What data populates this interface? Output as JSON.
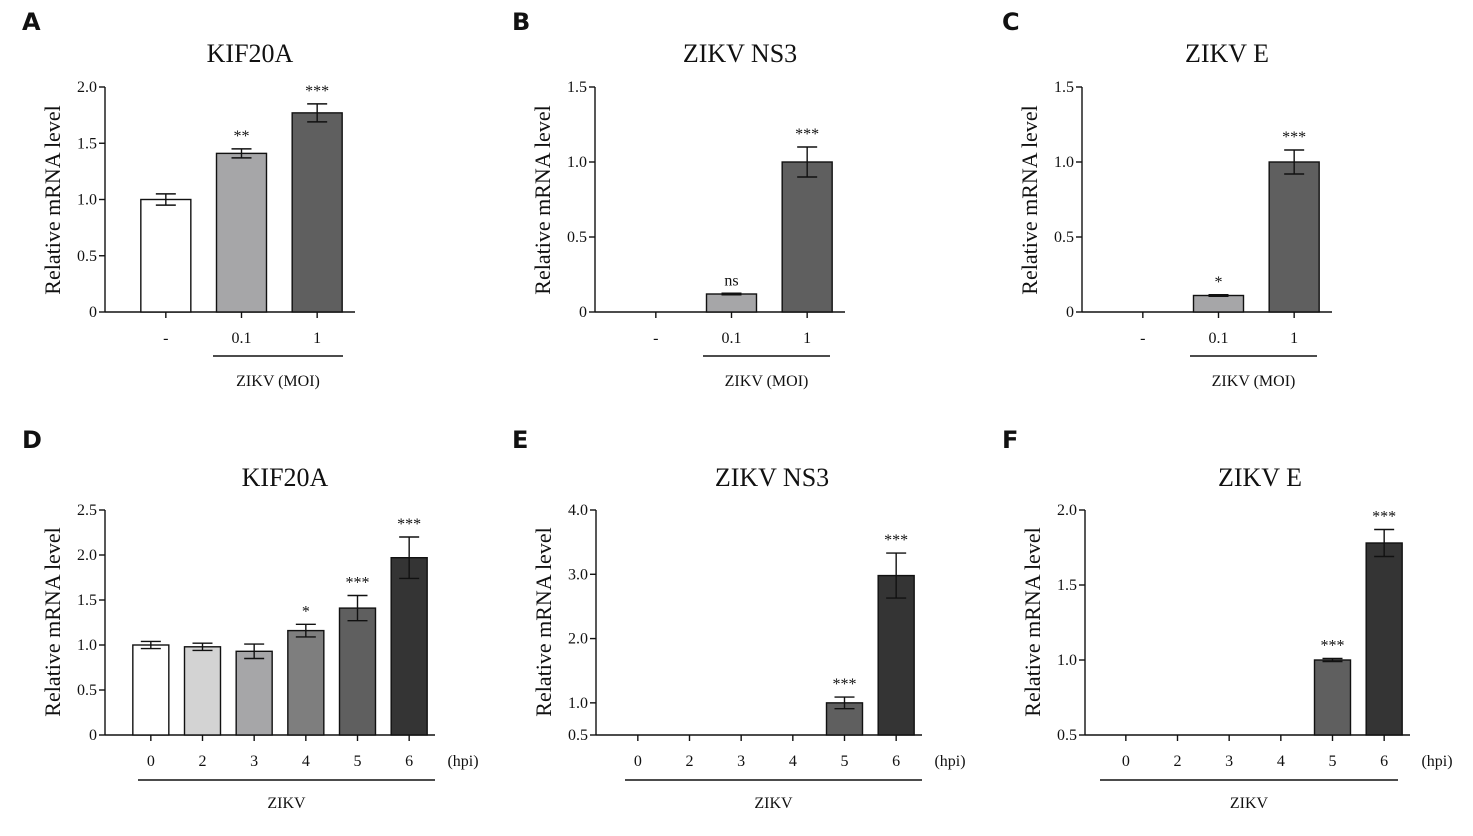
{
  "chart_data": [
    {
      "panel": "A",
      "type": "bar",
      "title": "KIF20A",
      "ylabel": "Relative mRNA level",
      "ylim": [
        0,
        2.0
      ],
      "yticks": [
        "0",
        "0.5",
        "1.0",
        "1.5",
        "2.0"
      ],
      "categories": [
        "-",
        "0.1",
        "1"
      ],
      "group_label": "ZIKV (MOI)",
      "unit_label": "",
      "values": [
        1.0,
        1.41,
        1.77
      ],
      "errors": [
        0.05,
        0.04,
        0.08
      ],
      "significance": [
        "",
        "**",
        "***"
      ],
      "colors": [
        "#ffffff",
        "#a6a6a8",
        "#5f5f5f"
      ]
    },
    {
      "panel": "B",
      "type": "bar",
      "title": "ZIKV NS3",
      "ylabel": "Relative mRNA level",
      "ylim": [
        0,
        1.5
      ],
      "yticks": [
        "0",
        "0.5",
        "1.0",
        "1.5"
      ],
      "categories": [
        "-",
        "0.1",
        "1"
      ],
      "group_label": "ZIKV (MOI)",
      "unit_label": "",
      "values": [
        0.0,
        0.12,
        1.0
      ],
      "errors": [
        0.0,
        0.005,
        0.1
      ],
      "significance": [
        "",
        "ns",
        "***"
      ],
      "colors": [
        "#ffffff",
        "#a6a6a8",
        "#5f5f5f"
      ]
    },
    {
      "panel": "C",
      "type": "bar",
      "title": "ZIKV E",
      "ylabel": "Relative mRNA level",
      "ylim": [
        0,
        1.5
      ],
      "yticks": [
        "0",
        "0.5",
        "1.0",
        "1.5"
      ],
      "categories": [
        "-",
        "0.1",
        "1"
      ],
      "group_label": "ZIKV (MOI)",
      "unit_label": "",
      "values": [
        0.0,
        0.11,
        1.0
      ],
      "errors": [
        0.0,
        0.005,
        0.08
      ],
      "significance": [
        "",
        "*",
        "***"
      ],
      "colors": [
        "#ffffff",
        "#a6a6a8",
        "#5f5f5f"
      ]
    },
    {
      "panel": "D",
      "type": "bar",
      "title": "KIF20A",
      "ylabel": "Relative mRNA level",
      "ylim": [
        0,
        2.5
      ],
      "yticks": [
        "0",
        "0.5",
        "1.0",
        "1.5",
        "2.0",
        "2.5"
      ],
      "categories": [
        "0",
        "2",
        "3",
        "4",
        "5",
        "6"
      ],
      "group_label": "ZIKV",
      "unit_label": "(hpi)",
      "values": [
        1.0,
        0.98,
        0.93,
        1.16,
        1.41,
        1.97
      ],
      "errors": [
        0.04,
        0.04,
        0.08,
        0.07,
        0.14,
        0.23
      ],
      "significance": [
        "",
        "",
        "",
        "*",
        "***",
        "***"
      ],
      "colors": [
        "#ffffff",
        "#d3d3d3",
        "#a6a6a8",
        "#7e7e7e",
        "#5f5f5f",
        "#343434"
      ]
    },
    {
      "panel": "E",
      "type": "bar",
      "title": "ZIKV NS3",
      "ylabel": "Relative mRNA level",
      "ylim": [
        0.5,
        4.0
      ],
      "yticks": [
        "0.5",
        "1.0",
        "2.0",
        "3.0",
        "4.0"
      ],
      "ytick_values": [
        0.5,
        1.0,
        2.0,
        3.0,
        4.0
      ],
      "categories": [
        "0",
        "2",
        "3",
        "4",
        "5",
        "6"
      ],
      "group_label": "ZIKV",
      "unit_label": "(hpi)",
      "values": [
        0.5,
        0.5,
        0.5,
        0.5,
        1.0,
        2.98
      ],
      "errors": [
        0,
        0,
        0,
        0,
        0.09,
        0.35
      ],
      "significance": [
        "",
        "",
        "",
        "",
        "***",
        "***"
      ],
      "colors": [
        "#ffffff",
        "#d3d3d3",
        "#a6a6a8",
        "#7e7e7e",
        "#5f5f5f",
        "#343434"
      ]
    },
    {
      "panel": "F",
      "type": "bar",
      "title": "ZIKV E",
      "ylabel": "Relative mRNA level",
      "ylim": [
        0.5,
        2.0
      ],
      "yticks": [
        "0.5",
        "1.0",
        "1.5",
        "2.0"
      ],
      "ytick_values": [
        0.5,
        1.0,
        1.5,
        2.0
      ],
      "categories": [
        "0",
        "2",
        "3",
        "4",
        "5",
        "6"
      ],
      "group_label": "ZIKV",
      "unit_label": "(hpi)",
      "values": [
        0.5,
        0.5,
        0.5,
        0.5,
        1.0,
        1.78
      ],
      "errors": [
        0,
        0,
        0,
        0,
        0.01,
        0.09
      ],
      "significance": [
        "",
        "",
        "",
        "",
        "***",
        "***"
      ],
      "colors": [
        "#ffffff",
        "#d3d3d3",
        "#a6a6a8",
        "#7e7e7e",
        "#5f5f5f",
        "#343434"
      ]
    }
  ]
}
